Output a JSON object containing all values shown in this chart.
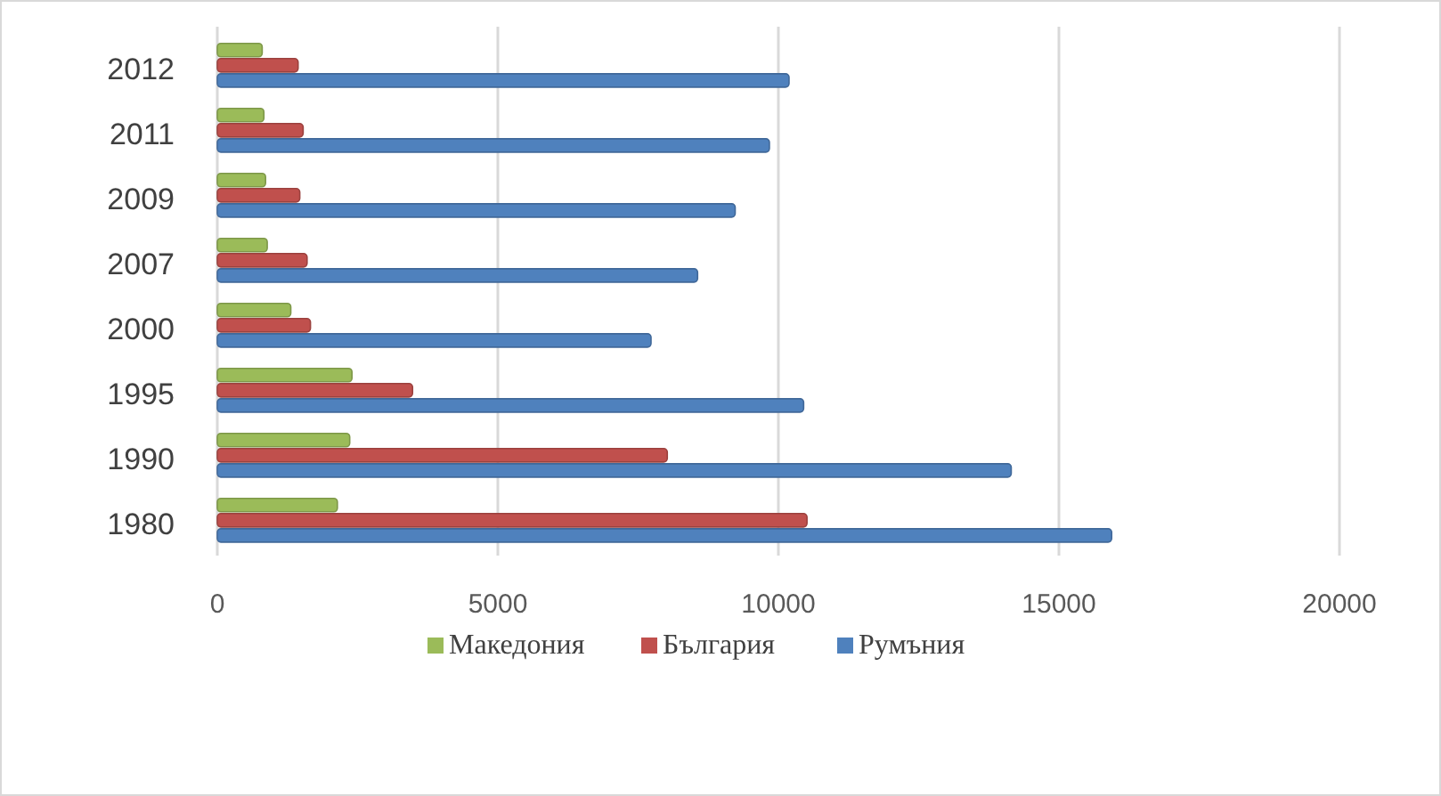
{
  "chart_data": {
    "type": "bar",
    "orientation": "horizontal",
    "categories": [
      "2012",
      "2011",
      "2009",
      "2007",
      "2000",
      "1995",
      "1990",
      "1980"
    ],
    "series": [
      {
        "name": "Македония",
        "color": "#9bbb59",
        "values": [
          800,
          830,
          860,
          890,
          1310,
          2400,
          2360,
          2140
        ]
      },
      {
        "name": "България",
        "color": "#c0504d",
        "values": [
          1440,
          1530,
          1470,
          1600,
          1660,
          3480,
          8020,
          10510
        ]
      },
      {
        "name": "Румъния",
        "color": "#4f81bd",
        "values": [
          10190,
          9840,
          9230,
          8560,
          7730,
          10450,
          14150,
          15940
        ]
      }
    ],
    "xlim": [
      0,
      20000
    ],
    "xticks": [
      0,
      5000,
      10000,
      15000,
      20000
    ],
    "grid": "x",
    "legend": "bottom"
  }
}
